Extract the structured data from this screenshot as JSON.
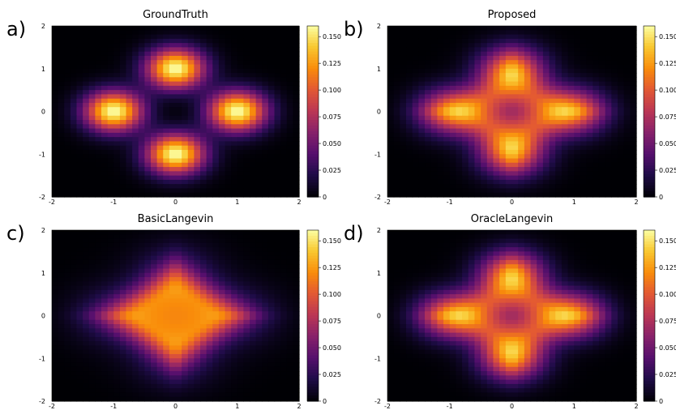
{
  "chart_data": [
    {
      "panel_letter": "a)",
      "title": "GroundTruth",
      "type": "heatmap",
      "xlim": [
        -2,
        2
      ],
      "ylim": [
        -2,
        2
      ],
      "xticks": [
        "-2",
        "-1",
        "0",
        "1",
        "2"
      ],
      "yticks": [
        "-2",
        "-1",
        "0",
        "1",
        "2"
      ],
      "colorbar": {
        "range": [
          0,
          0.16
        ],
        "ticks": [
          "0",
          "0.025",
          "0.050",
          "0.075",
          "0.100",
          "0.125",
          "0.150"
        ],
        "colormap": "inferno"
      },
      "density": {
        "grid_n": 40,
        "sigma": 0.33,
        "blend": 0.0,
        "modes": [
          [
            0,
            1
          ],
          [
            0,
            -1
          ],
          [
            1,
            0
          ],
          [
            -1,
            0
          ]
        ],
        "center_dip": 0.35
      }
    },
    {
      "panel_letter": "b)",
      "title": "Proposed",
      "type": "heatmap",
      "xlim": [
        -2,
        2
      ],
      "ylim": [
        -2,
        2
      ],
      "xticks": [
        "-2",
        "-1",
        "0",
        "1",
        "2"
      ],
      "yticks": [
        "-2",
        "-1",
        "0",
        "1",
        "2"
      ],
      "colorbar": {
        "range": [
          0,
          0.16
        ],
        "ticks": [
          "0",
          "0.025",
          "0.050",
          "0.075",
          "0.100",
          "0.125",
          "0.150"
        ],
        "colormap": "inferno"
      },
      "density": {
        "grid_n": 40,
        "sigma": 0.38,
        "blend": 0.2,
        "modes": [
          [
            0,
            1
          ],
          [
            0,
            -1
          ],
          [
            1,
            0
          ],
          [
            -1,
            0
          ]
        ],
        "center_dip": 0.2
      }
    },
    {
      "panel_letter": "c)",
      "title": "BasicLangevin",
      "type": "heatmap",
      "xlim": [
        -2,
        2
      ],
      "ylim": [
        -2,
        2
      ],
      "xticks": [
        "-2",
        "-1",
        "0",
        "1",
        "2"
      ],
      "yticks": [
        "-2",
        "-1",
        "0",
        "1",
        "2"
      ],
      "colorbar": {
        "range": [
          0,
          0.16
        ],
        "ticks": [
          "0",
          "0.025",
          "0.050",
          "0.075",
          "0.100",
          "0.125",
          "0.150"
        ],
        "colormap": "inferno"
      },
      "density": {
        "grid_n": 40,
        "sigma": 0.5,
        "blend": 0.55,
        "modes": [
          [
            0,
            1
          ],
          [
            0,
            -1
          ],
          [
            1,
            0
          ],
          [
            -1,
            0
          ]
        ],
        "center_dip": 0.0
      }
    },
    {
      "panel_letter": "d)",
      "title": "OracleLangevin",
      "type": "heatmap",
      "xlim": [
        -2,
        2
      ],
      "ylim": [
        -2,
        2
      ],
      "xticks": [
        "-2",
        "-1",
        "0",
        "1",
        "2"
      ],
      "yticks": [
        "-2",
        "-1",
        "0",
        "1",
        "2"
      ],
      "colorbar": {
        "range": [
          0,
          0.16
        ],
        "ticks": [
          "0",
          "0.025",
          "0.050",
          "0.075",
          "0.100",
          "0.125",
          "0.150"
        ],
        "colormap": "inferno"
      },
      "density": {
        "grid_n": 40,
        "sigma": 0.38,
        "blend": 0.2,
        "modes": [
          [
            0,
            1
          ],
          [
            0,
            -1
          ],
          [
            1,
            0
          ],
          [
            -1,
            0
          ]
        ],
        "center_dip": 0.2
      }
    }
  ]
}
